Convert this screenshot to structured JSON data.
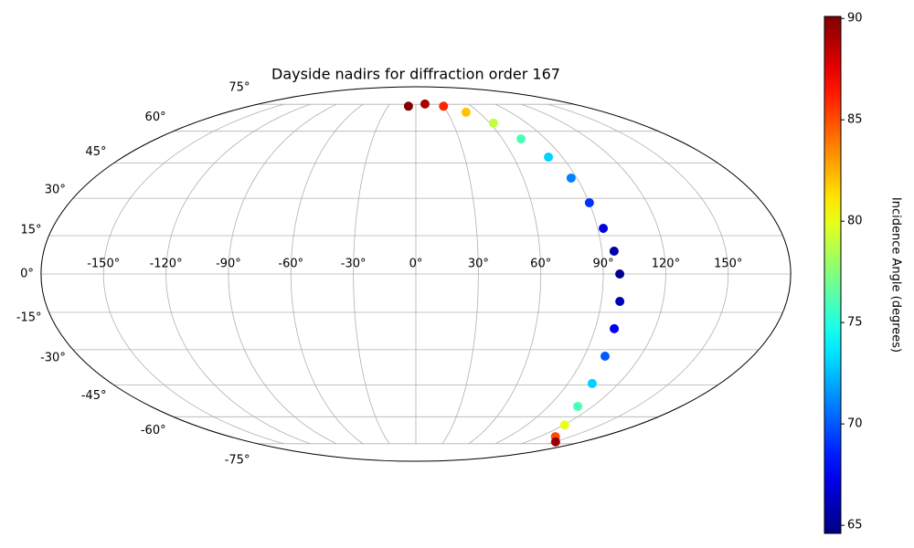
{
  "chart_data": {
    "type": "scatter",
    "projection": "mollweide",
    "title": "Dayside nadirs for diffraction order 167",
    "x": [
      -8,
      10.4,
      29.9,
      47.8,
      62.9,
      72.9,
      81.5,
      86.8,
      90.1,
      92.8,
      95.9,
      97.9,
      99.0,
      99.6,
      101.1,
      104.4,
      109.9,
      120.6,
      135.1,
      151
    ],
    "y": [
      73.8,
      75.2,
      73.8,
      70.2,
      64.2,
      56.2,
      47.7,
      38.5,
      28.2,
      17.9,
      8.9,
      0,
      -10.7,
      -21.5,
      -32.7,
      -44.4,
      -54.9,
      -64.2,
      -70.7,
      -73.8
    ],
    "values": [
      90,
      89,
      86,
      82,
      79,
      76,
      73,
      71,
      69,
      67,
      65.5,
      65,
      66,
      67.5,
      70,
      73,
      76,
      80,
      85,
      89.5
    ],
    "colormap": "jet",
    "clim": [
      64.6,
      90.1
    ],
    "cticks": [
      65,
      70,
      75,
      80,
      85,
      90
    ],
    "colorbar_label": "Incidence Angle (degrees)",
    "xticks": [
      {
        "value": -150,
        "label": "-150°"
      },
      {
        "value": -120,
        "label": "-120°"
      },
      {
        "value": -90,
        "label": "-90°"
      },
      {
        "value": -60,
        "label": "-60°"
      },
      {
        "value": -30,
        "label": "-30°"
      },
      {
        "value": 0,
        "label": "0°"
      },
      {
        "value": 30,
        "label": "30°"
      },
      {
        "value": 60,
        "label": "60°"
      },
      {
        "value": 90,
        "label": "90°"
      },
      {
        "value": 120,
        "label": "120°"
      },
      {
        "value": 150,
        "label": "150°"
      }
    ],
    "yticks": [
      {
        "value": -75,
        "label": "-75°"
      },
      {
        "value": -60,
        "label": "-60°"
      },
      {
        "value": -45,
        "label": "-45°"
      },
      {
        "value": -30,
        "label": "-30°"
      },
      {
        "value": -15,
        "label": "-15°"
      },
      {
        "value": 0,
        "label": "0°"
      },
      {
        "value": 15,
        "label": "15°"
      },
      {
        "value": 30,
        "label": "30°"
      },
      {
        "value": 45,
        "label": "45°"
      },
      {
        "value": 60,
        "label": "60°"
      },
      {
        "value": 75,
        "label": "75°"
      }
    ],
    "grid": true
  }
}
